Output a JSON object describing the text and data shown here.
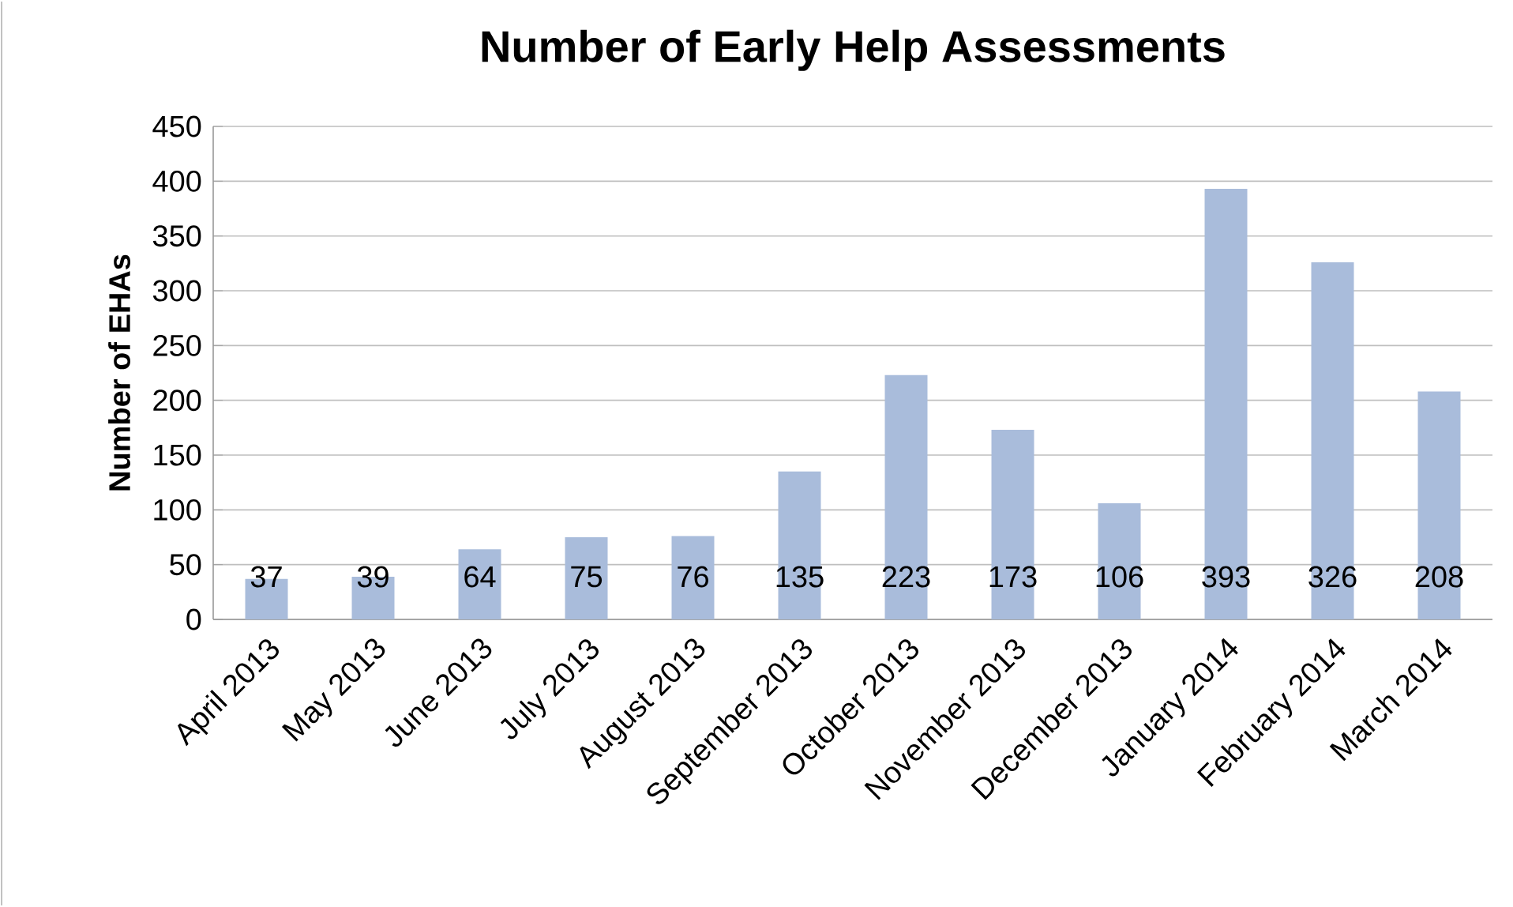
{
  "chart_data": {
    "type": "bar",
    "title": "Number of Early Help Assessments",
    "ylabel": "Number of EHAs",
    "categories": [
      "April 2013",
      "May 2013",
      "June 2013",
      "July 2013",
      "August 2013",
      "September 2013",
      "October 2013",
      "November 2013",
      "December 2013",
      "January 2014",
      "February 2014",
      "March 2014"
    ],
    "values": [
      37,
      39,
      64,
      75,
      76,
      135,
      223,
      173,
      106,
      393,
      326,
      208
    ],
    "color": "#a9bcdb",
    "ylim": [
      0,
      450
    ],
    "yticks": [
      0,
      50,
      100,
      150,
      200,
      250,
      300,
      350,
      400,
      450
    ],
    "grid": "y",
    "data_labels": true
  }
}
